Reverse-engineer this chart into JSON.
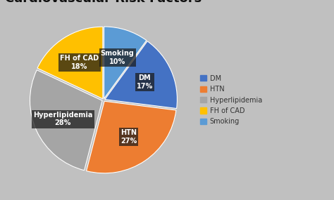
{
  "title_fontsize": 13,
  "title_fontweight": "bold",
  "labels": [
    "DM",
    "HTN",
    "Hyperlipidemia",
    "FH of CAD",
    "Smoking"
  ],
  "values": [
    17,
    27,
    28,
    18,
    10
  ],
  "colors": [
    "#4472C4",
    "#ED7D31",
    "#A5A5A5",
    "#FFC000",
    "#5B9BD5"
  ],
  "bg_color": "#C8C8C8",
  "legend_labels": [
    "DM",
    "HTN",
    "Hyperlipidemia",
    "FH of CAD",
    "Smoking"
  ],
  "legend_colors": [
    "#4472C4",
    "#ED7D31",
    "#A5A5A5",
    "#FFC000",
    "#5B9BD5"
  ],
  "startangle": 72,
  "explode": [
    0.02,
    0.02,
    0.02,
    0.02,
    0.02
  ],
  "label_fontsize": 7.0
}
